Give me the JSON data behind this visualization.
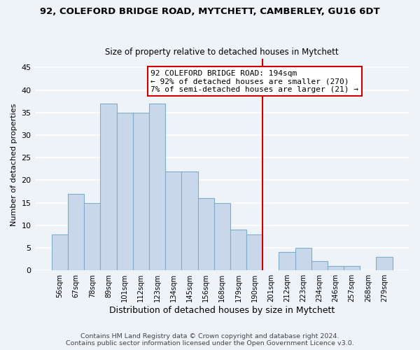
{
  "title1": "92, COLEFORD BRIDGE ROAD, MYTCHETT, CAMBERLEY, GU16 6DT",
  "title2": "Size of property relative to detached houses in Mytchett",
  "xlabel": "Distribution of detached houses by size in Mytchett",
  "ylabel": "Number of detached properties",
  "footnote1": "Contains HM Land Registry data © Crown copyright and database right 2024.",
  "footnote2": "Contains public sector information licensed under the Open Government Licence v3.0.",
  "bar_labels": [
    "56sqm",
    "67sqm",
    "78sqm",
    "89sqm",
    "101sqm",
    "112sqm",
    "123sqm",
    "134sqm",
    "145sqm",
    "156sqm",
    "168sqm",
    "179sqm",
    "190sqm",
    "201sqm",
    "212sqm",
    "223sqm",
    "234sqm",
    "246sqm",
    "257sqm",
    "268sqm",
    "279sqm"
  ],
  "bar_values": [
    8,
    17,
    15,
    37,
    35,
    35,
    37,
    22,
    22,
    16,
    15,
    9,
    8,
    0,
    4,
    5,
    2,
    1,
    1,
    0,
    3
  ],
  "bar_color": "#c8d8ea",
  "bar_edge_color": "#7facc8",
  "vline_x": 12.5,
  "vline_color": "#cc0000",
  "annotation_box_text": "92 COLEFORD BRIDGE ROAD: 194sqm\n← 92% of detached houses are smaller (270)\n7% of semi-detached houses are larger (21) →",
  "ylim": [
    0,
    47
  ],
  "yticks": [
    0,
    5,
    10,
    15,
    20,
    25,
    30,
    35,
    40,
    45
  ],
  "bg_color": "#eef3f8",
  "grid_color": "#ffffff",
  "box_edge_color": "#cc0000",
  "title1_fontsize": 9.5,
  "title2_fontsize": 8.5,
  "footnote_fontsize": 6.8,
  "ylabel_fontsize": 8.0,
  "xlabel_fontsize": 9.0,
  "ann_fontsize": 8.0
}
